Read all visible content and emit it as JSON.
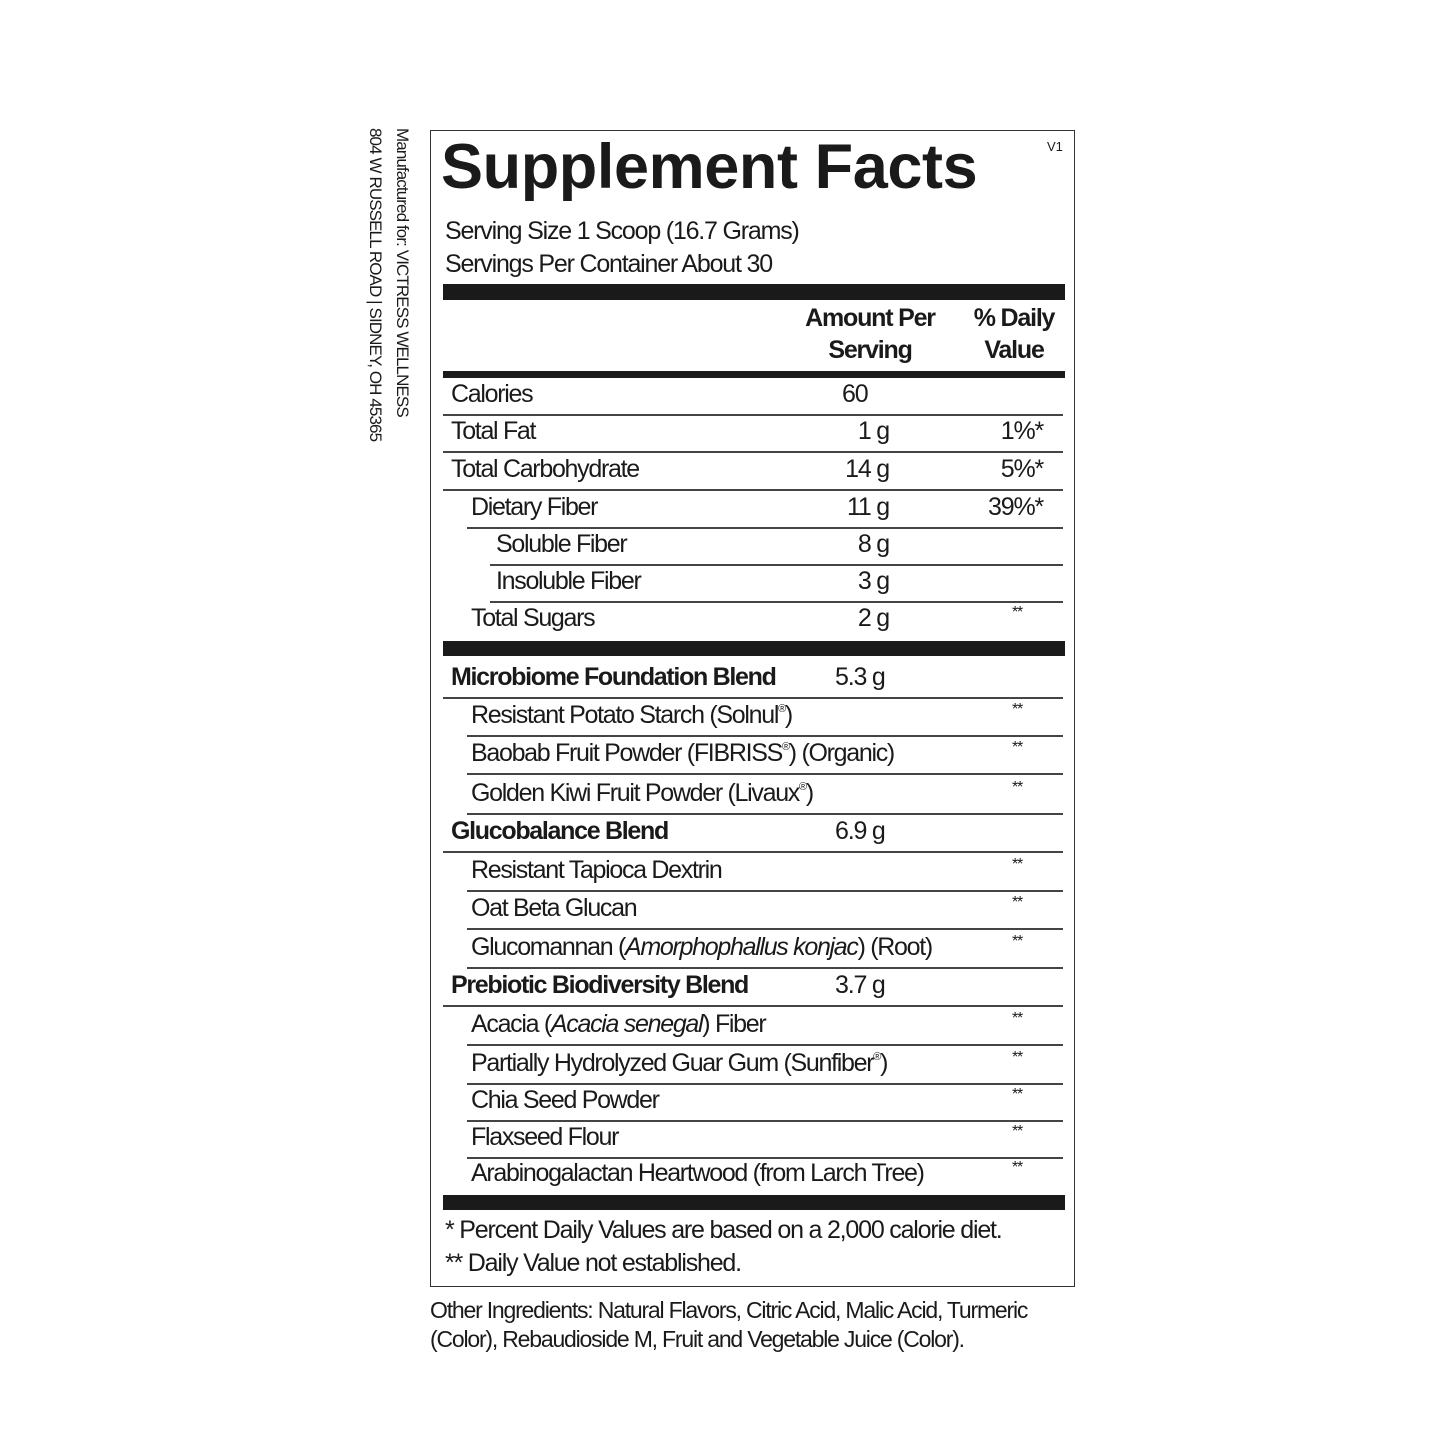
{
  "side_text": {
    "line1": "Manufactured for: VICTRESS WELLNESS",
    "line2": "804 W RUSSELL ROAD  |  SIDNEY, OH 45365"
  },
  "title": "Supplement Facts",
  "version": "V1",
  "serving_size": "Serving Size 1 Scoop (16.7 Grams)",
  "servings_per_container": "Servings Per Container About 30",
  "header": {
    "amount_line1": "Amount Per",
    "amount_line2": "Serving",
    "dv_line1": "% Daily",
    "dv_line2": "Value"
  },
  "nutrients": [
    {
      "label": "Calories",
      "amount": "60",
      "dv": "",
      "level": 0
    },
    {
      "label": "Total Fat",
      "amount": "1 g",
      "dv": "1%*",
      "level": 0
    },
    {
      "label": "Total Carbohydrate",
      "amount": "14 g",
      "dv": "5%*",
      "level": 0
    },
    {
      "label": "Dietary Fiber",
      "amount": "11 g",
      "dv": "39%*",
      "level": 1
    },
    {
      "label": "Soluble Fiber",
      "amount": "8 g",
      "dv": "",
      "level": 2
    },
    {
      "label": "Insoluble Fiber",
      "amount": "3 g",
      "dv": "",
      "level": 2
    },
    {
      "label": "Total Sugars",
      "amount": "2 g",
      "dv": "**",
      "level": 1
    }
  ],
  "blends": [
    {
      "label": "Microbiome Foundation Blend",
      "amount": "5.3 g",
      "dv": "",
      "level": 0,
      "bold": true
    },
    {
      "label": "Resistant Potato Starch (Solnul®)",
      "amount": "",
      "dv": "**",
      "level": 1
    },
    {
      "label": "Baobab Fruit Powder (FIBRISS®) (Organic)",
      "amount": "",
      "dv": "**",
      "level": 1
    },
    {
      "label": "Golden Kiwi Fruit Powder (Livaux®)",
      "amount": "",
      "dv": "**",
      "level": 1
    },
    {
      "label": "Glucobalance Blend",
      "amount": "6.9 g",
      "dv": "",
      "level": 0,
      "bold": true
    },
    {
      "label": "Resistant Tapioca Dextrin",
      "amount": "",
      "dv": "**",
      "level": 1
    },
    {
      "label": "Oat Beta Glucan",
      "amount": "",
      "dv": "**",
      "level": 1
    },
    {
      "label": "Glucomannan (Amorphophallus konjac) (Root)",
      "italic": "Amorphophallus konjac",
      "amount": "",
      "dv": "**",
      "level": 1
    },
    {
      "label": "Prebiotic Biodiversity Blend",
      "amount": "3.7 g",
      "dv": "",
      "level": 0,
      "bold": true
    },
    {
      "label": "Acacia (Acacia senegal) Fiber",
      "italic": "Acacia senegal",
      "amount": "",
      "dv": "**",
      "level": 1
    },
    {
      "label": "Partially Hydrolyzed Guar Gum (Sunfiber®)",
      "amount": "",
      "dv": "**",
      "level": 1
    },
    {
      "label": "Chia Seed Powder",
      "amount": "",
      "dv": "**",
      "level": 1
    },
    {
      "label": "Flaxseed Flour",
      "amount": "",
      "dv": "**",
      "level": 1
    },
    {
      "label": "Arabinogalactan Heartwood (from Larch Tree)",
      "amount": "",
      "dv": "**",
      "level": 1
    }
  ],
  "footnotes": {
    "line1": "* Percent Daily Values are based on a 2,000 calorie diet.",
    "line2": "** Daily Value not established."
  },
  "other_ingredients": {
    "line1": "Other Ingredients: Natural Flavors, Citric Acid, Malic Acid, Turmeric",
    "line2": "(Color), Rebaudioside M, Fruit and Vegetable Juice (Color)."
  }
}
